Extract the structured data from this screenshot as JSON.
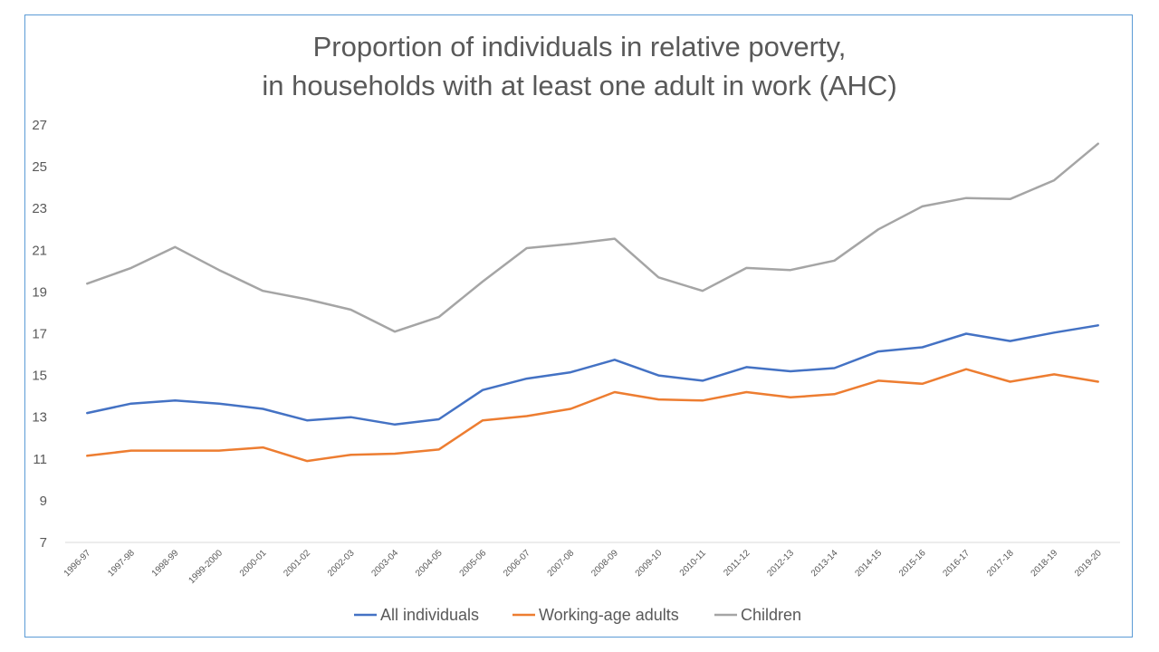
{
  "chart_data": {
    "type": "line",
    "title": "Proportion of individuals  in relative poverty,",
    "subtitle": "in households with at least one adult in work (AHC)",
    "xlabel": "",
    "ylabel": "",
    "ylim": [
      7,
      27
    ],
    "yticks": [
      7,
      9,
      11,
      13,
      15,
      17,
      19,
      21,
      23,
      25,
      27
    ],
    "grid": false,
    "legend_position": "bottom",
    "categories": [
      "1996-97",
      "1997-98",
      "1998-99",
      "1999-2000",
      "2000-01",
      "2001-02",
      "2002-03",
      "2003-04",
      "2004-05",
      "2005-06",
      "2006-07",
      "2007-08",
      "2008-09",
      "2009-10",
      "2010-11",
      "2011-12",
      "2012-13",
      "2013-14",
      "2014-15",
      "2015-16",
      "2016-17",
      "2017-18",
      "2018-19",
      "2019-20"
    ],
    "series": [
      {
        "name": "All individuals",
        "color": "#4472c4",
        "values": [
          13.2,
          13.65,
          13.8,
          13.65,
          13.4,
          12.85,
          13.0,
          12.65,
          12.9,
          14.3,
          14.85,
          15.15,
          15.75,
          15.0,
          14.75,
          15.4,
          15.2,
          15.35,
          16.15,
          16.35,
          17.0,
          16.65,
          17.05,
          17.4
        ]
      },
      {
        "name": "Working-age adults",
        "color": "#ed7d31",
        "values": [
          11.15,
          11.4,
          11.4,
          11.4,
          11.55,
          10.9,
          11.2,
          11.25,
          11.45,
          12.85,
          13.05,
          13.4,
          14.2,
          13.85,
          13.8,
          14.2,
          13.95,
          14.1,
          14.75,
          14.6,
          15.3,
          14.7,
          15.05,
          14.7
        ]
      },
      {
        "name": "Children",
        "color": "#a5a5a5",
        "values": [
          19.4,
          20.15,
          21.15,
          20.05,
          19.05,
          18.65,
          18.15,
          17.1,
          17.8,
          19.5,
          21.1,
          21.3,
          21.55,
          19.7,
          19.05,
          20.15,
          20.05,
          20.5,
          22.0,
          23.1,
          23.5,
          23.45,
          24.35,
          26.1
        ]
      }
    ]
  }
}
